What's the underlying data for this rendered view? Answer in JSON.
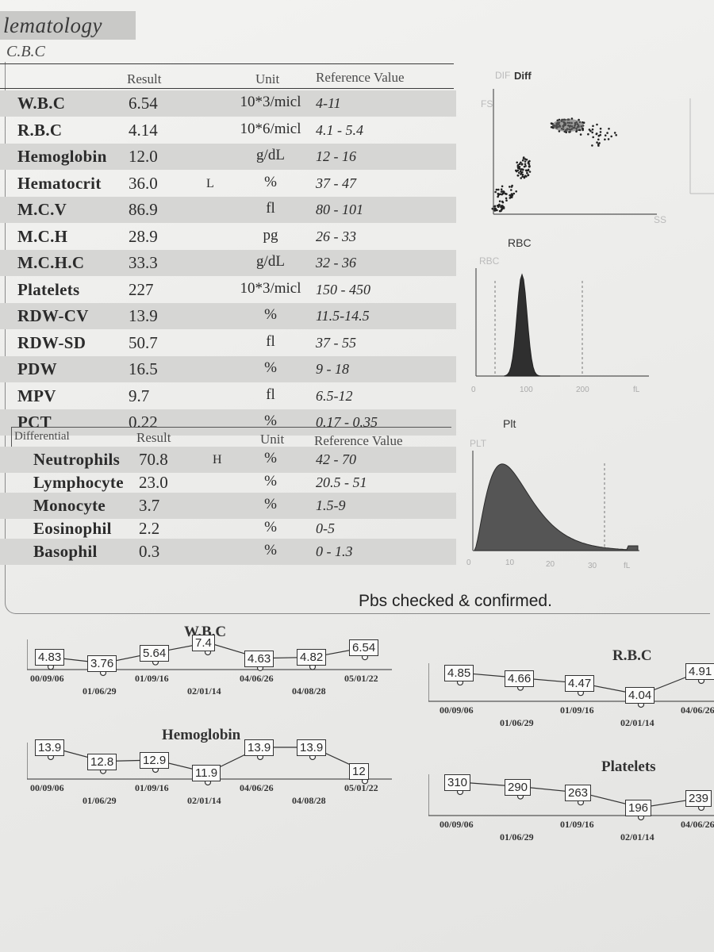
{
  "header": {
    "title": "lematology",
    "subtitle": "C.B.C"
  },
  "cbc_headers": {
    "result": "Result",
    "unit": "Unit",
    "reference": "Reference Value"
  },
  "cbc_rows": [
    {
      "name": "W.B.C",
      "result": "6.54",
      "flag": "",
      "unit": "10*3/micl",
      "ref": "4-11"
    },
    {
      "name": "R.B.C",
      "result": "4.14",
      "flag": "",
      "unit": "10*6/micl",
      "ref": "4.1 - 5.4"
    },
    {
      "name": "Hemoglobin",
      "result": "12.0",
      "flag": "",
      "unit": "g/dL",
      "ref": "12 - 16"
    },
    {
      "name": "Hematocrit",
      "result": "36.0",
      "flag": "L",
      "unit": "%",
      "ref": "37 - 47"
    },
    {
      "name": "M.C.V",
      "result": "86.9",
      "flag": "",
      "unit": "fl",
      "ref": "80 - 101"
    },
    {
      "name": "M.C.H",
      "result": "28.9",
      "flag": "",
      "unit": "pg",
      "ref": "26 - 33"
    },
    {
      "name": "M.C.H.C",
      "result": "33.3",
      "flag": "",
      "unit": "g/dL",
      "ref": "32 - 36"
    },
    {
      "name": "Platelets",
      "result": "227",
      "flag": "",
      "unit": "10*3/micl",
      "ref": "150 - 450"
    },
    {
      "name": "RDW-CV",
      "result": "13.9",
      "flag": "",
      "unit": "%",
      "ref": "11.5-14.5"
    },
    {
      "name": "RDW-SD",
      "result": "50.7",
      "flag": "",
      "unit": "fl",
      "ref": "37 - 55"
    },
    {
      "name": "PDW",
      "result": "16.5",
      "flag": "",
      "unit": "%",
      "ref": "9 - 18"
    },
    {
      "name": "MPV",
      "result": "9.7",
      "flag": "",
      "unit": "fl",
      "ref": "6.5-12"
    },
    {
      "name": "PCT",
      "result": "0.22",
      "flag": "",
      "unit": "%",
      "ref": "0.17 - 0.35"
    }
  ],
  "diff_headers": {
    "section": "Differential",
    "result": "Result",
    "unit": "Unit",
    "reference": "Reference Value"
  },
  "diff_rows": [
    {
      "name": "Neutrophils",
      "result": "70.8",
      "flag": "H",
      "unit": "%",
      "ref": "42 - 70"
    },
    {
      "name": "Lymphocyte",
      "result": "23.0",
      "flag": "",
      "unit": "%",
      "ref": "20.5 - 51"
    },
    {
      "name": "Monocyte",
      "result": "3.7",
      "flag": "",
      "unit": "%",
      "ref": "1.5-9"
    },
    {
      "name": "Eosinophil",
      "result": "2.2",
      "flag": "",
      "unit": "%",
      "ref": "0-5"
    },
    {
      "name": "Basophil",
      "result": "0.3",
      "flag": "",
      "unit": "%",
      "ref": "0 - 1.3"
    }
  ],
  "plots": {
    "diff": {
      "title": "Diff",
      "ghost_title": "DIF",
      "y_label": "FS",
      "x_label": "SS"
    },
    "rbc": {
      "title": "RBC",
      "y_label": "RBC",
      "ticks": [
        "0",
        "100",
        "200",
        "fL"
      ]
    },
    "plt": {
      "title": "Plt",
      "y_label": "PLT",
      "ticks": [
        "0",
        "10",
        "20",
        "30",
        "fL"
      ]
    }
  },
  "note": "Pbs checked & confirmed.",
  "chart_data": [
    {
      "type": "line",
      "title": "W.B.C",
      "x": [
        "00/09/06",
        "01/06/29",
        "01/09/16",
        "02/01/14",
        "04/06/26",
        "04/08/28",
        "05/01/22"
      ],
      "values": [
        4.83,
        3.76,
        5.64,
        7.4,
        4.63,
        4.82,
        6.54
      ]
    },
    {
      "type": "line",
      "title": "R.B.C",
      "x": [
        "00/09/06",
        "01/06/29",
        "01/09/16",
        "02/01/14",
        "04/06/26"
      ],
      "values": [
        4.85,
        4.66,
        4.47,
        4.04,
        4.91
      ]
    },
    {
      "type": "line",
      "title": "Hemoglobin",
      "x": [
        "00/09/06",
        "01/06/29",
        "01/09/16",
        "02/01/14",
        "04/06/26",
        "04/08/28",
        "05/01/22"
      ],
      "values": [
        13.9,
        12.8,
        12.9,
        11.9,
        13.9,
        13.9,
        12
      ]
    },
    {
      "type": "line",
      "title": "Platelets",
      "x": [
        "00/09/06",
        "01/06/29",
        "01/09/16",
        "02/01/14",
        "04/06/26"
      ],
      "values": [
        310,
        290,
        263,
        196,
        239
      ]
    }
  ]
}
